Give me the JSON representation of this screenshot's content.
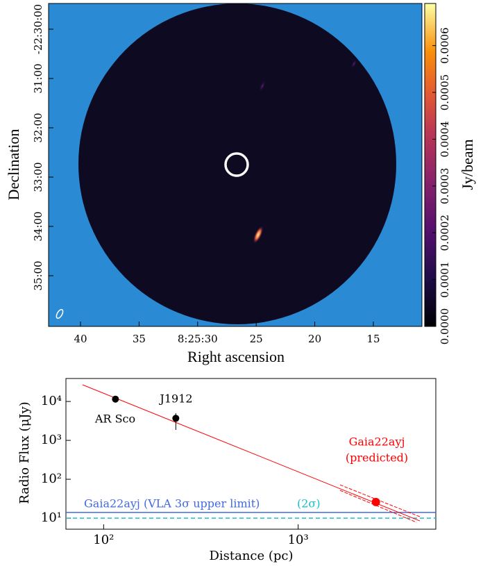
{
  "chart_data": [
    {
      "type": "image",
      "xlabel": "Right ascension",
      "ylabel": "Declination",
      "xtick_labels": [
        "40",
        "35",
        "8:25:30",
        "25",
        "20",
        "15"
      ],
      "ytick_labels": [
        "-22:30:00",
        "31:00",
        "32:00",
        "33:00",
        "34:00",
        "35:00"
      ],
      "colorbar": {
        "label": "Jy/beam",
        "lim": [
          0,
          0.00069
        ],
        "ticks": [
          {
            "value": 0,
            "label": "0.0000"
          },
          {
            "value": 0.0001,
            "label": "0.0001"
          },
          {
            "value": 0.0002,
            "label": "0.0002"
          },
          {
            "value": 0.0003,
            "label": "0.0003"
          },
          {
            "value": 0.0004,
            "label": "0.0004"
          },
          {
            "value": 0.0005,
            "label": "0.0005"
          },
          {
            "value": 0.0006,
            "label": "0.0006"
          }
        ]
      }
    },
    {
      "type": "scatter",
      "xscale": "log",
      "yscale": "log",
      "xlabel": "Distance (pc)",
      "ylabel": "Radio Flux (μJy)",
      "xlim": [
        64,
        5100
      ],
      "ylim": [
        5.2,
        39000
      ],
      "xticks": [
        {
          "value": 100,
          "label": "10²"
        },
        {
          "value": 1000,
          "label": "10³"
        }
      ],
      "yticks": [
        {
          "value": 10,
          "label": "10¹"
        },
        {
          "value": 100,
          "label": "10²"
        },
        {
          "value": 1000,
          "label": "10³"
        },
        {
          "value": 10000,
          "label": "10⁴"
        }
      ],
      "series": [
        {
          "color": "#000000",
          "x": [
            115
          ],
          "values": [
            11500
          ]
        },
        {
          "color": "#000000",
          "x": [
            235
          ],
          "values": [
            3700
          ],
          "ylow": [
            1860
          ],
          "yhigh": [
            5000
          ]
        },
        {
          "color": "#ff0000",
          "x": [
            2510
          ],
          "values": [
            26
          ]
        }
      ],
      "lines": [
        {
          "color": "#ff0000",
          "style": "solid",
          "x": [
            78,
            4220
          ],
          "values": [
            26800,
            8.5
          ]
        },
        {
          "color": "#ff0000",
          "style": "dashed",
          "x": [
            1640,
            4220
          ],
          "values": [
            72,
            10.9
          ]
        },
        {
          "color": "#ff0000",
          "style": "dashed",
          "x": [
            1640,
            4060
          ],
          "values": [
            51.8,
            7.8
          ]
        }
      ],
      "hlines": [
        {
          "value": 14,
          "color": "#4169e1",
          "style": "solid"
        },
        {
          "value": 10,
          "color": "#17becf",
          "style": "dashed"
        }
      ],
      "annotations": [
        {
          "text": "AR Sco",
          "color": "#000000"
        },
        {
          "text": "J1912",
          "color": "#000000"
        },
        {
          "text": "Gaia22ayj",
          "color": "#ff0000"
        },
        {
          "text": "(predicted)",
          "color": "#ff0000"
        },
        {
          "text": "Gaia22ayj (VLA 3σ upper limit)",
          "color": "#4169e1"
        },
        {
          "text": "(2σ)",
          "color": "#17becf"
        }
      ]
    }
  ]
}
